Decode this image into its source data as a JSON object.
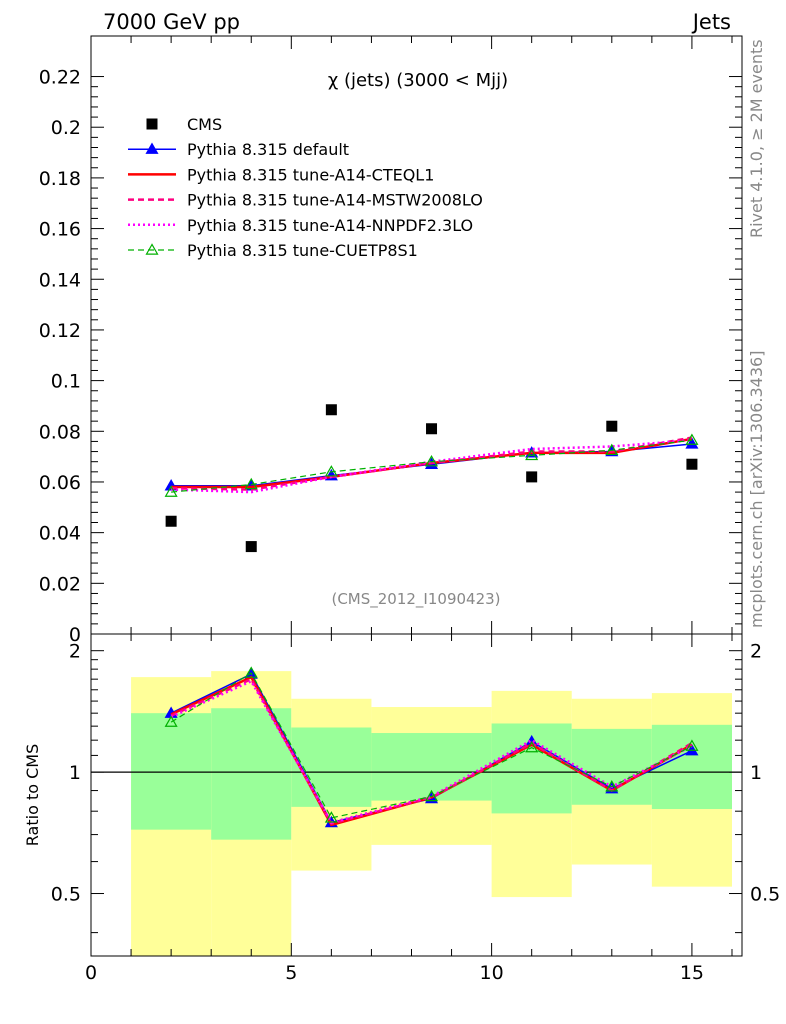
{
  "header": {
    "left_label": "7000 GeV pp",
    "right_label": "Jets"
  },
  "side_labels": {
    "rivet": "Rivet 4.1.0, ≥ 2M events",
    "source": "mcplots.cern.ch [arXiv:1306.3436]"
  },
  "colors": {
    "data": "#000000",
    "default": "#0000ff",
    "cteql1": "#ff0000",
    "mstw": "#ff0080",
    "nnpdf": "#ff00ff",
    "cuetp": "#00b000",
    "band_inner": "#99ff99",
    "band_outer": "#ffff99"
  },
  "chart_data": [
    {
      "type": "scatter",
      "panel": "main",
      "title": "χ (jets) (3000 < Mjj)",
      "analysis": "(CMS_2012_I1090423)",
      "xlabel": "",
      "ylabel": "",
      "xlim": [
        0,
        16.25
      ],
      "ylim": [
        0,
        0.236
      ],
      "yticks": [
        0,
        0.02,
        0.04,
        0.06,
        0.08,
        0.1,
        0.12,
        0.14,
        0.16,
        0.18,
        0.2,
        0.22
      ],
      "ytick_labels": [
        "0",
        "0.02",
        "0.04",
        "0.06",
        "0.08",
        "0.1",
        "0.12",
        "0.14",
        "0.16",
        "0.18",
        "0.2",
        "0.22"
      ],
      "legend": "top-left",
      "x": [
        2,
        4,
        6,
        8.5,
        11,
        13,
        15
      ],
      "series": [
        {
          "name": "CMS",
          "key": "data",
          "values": [
            0.0445,
            0.0345,
            0.0885,
            0.081,
            0.062,
            0.082,
            0.067
          ]
        },
        {
          "name": "Pythia 8.315 default",
          "key": "default",
          "values": [
            0.0585,
            0.0585,
            0.0625,
            0.067,
            0.0715,
            0.072,
            0.075
          ]
        },
        {
          "name": "Pythia 8.315 tune-A14-CTEQL1",
          "key": "cteql1",
          "values": [
            0.058,
            0.058,
            0.062,
            0.0675,
            0.0715,
            0.0715,
            0.077
          ]
        },
        {
          "name": "Pythia 8.315 tune-A14-MSTW2008LO",
          "key": "mstw",
          "values": [
            0.0575,
            0.057,
            0.062,
            0.0675,
            0.072,
            0.072,
            0.0775
          ]
        },
        {
          "name": "Pythia 8.315 tune-A14-NNPDF2.3LO",
          "key": "nnpdf",
          "values": [
            0.057,
            0.056,
            0.062,
            0.068,
            0.073,
            0.074,
            0.0765
          ]
        },
        {
          "name": "Pythia 8.315 tune-CUETP8S1",
          "key": "cuetp",
          "values": [
            0.056,
            0.059,
            0.064,
            0.068,
            0.0705,
            0.0725,
            0.0765
          ]
        }
      ]
    },
    {
      "type": "line",
      "panel": "ratio",
      "xlabel": "",
      "ylabel": "Ratio to CMS",
      "xlim": [
        0,
        16.25
      ],
      "ylim": [
        0.35,
        2.2
      ],
      "xticks": [
        0,
        5,
        10,
        15
      ],
      "xtick_labels": [
        "0",
        "5",
        "10",
        "15"
      ],
      "yticks": [
        0.5,
        1,
        2
      ],
      "ytick_labels": [
        "0.5",
        "1",
        "2"
      ],
      "bins": [
        [
          1,
          3
        ],
        [
          3,
          5
        ],
        [
          5,
          7
        ],
        [
          7,
          10
        ],
        [
          10,
          12
        ],
        [
          12,
          14
        ],
        [
          14,
          16
        ]
      ],
      "band_inner": [
        [
          0.72,
          1.4
        ],
        [
          0.68,
          1.44
        ],
        [
          0.82,
          1.29
        ],
        [
          0.85,
          1.25
        ],
        [
          0.79,
          1.32
        ],
        [
          0.83,
          1.28
        ],
        [
          0.81,
          1.31
        ]
      ],
      "band_outer": [
        [
          0.35,
          1.72
        ],
        [
          0.35,
          1.78
        ],
        [
          0.57,
          1.52
        ],
        [
          0.66,
          1.45
        ],
        [
          0.49,
          1.59
        ],
        [
          0.59,
          1.52
        ],
        [
          0.52,
          1.57
        ]
      ],
      "x": [
        2,
        4,
        6,
        8.5,
        11,
        13,
        15
      ],
      "series": [
        {
          "name": "Pythia 8.315 default",
          "key": "default",
          "values": [
            1.4,
            1.75,
            0.75,
            0.86,
            1.19,
            0.91,
            1.13
          ]
        },
        {
          "name": "Pythia 8.315 tune-A14-CTEQL1",
          "key": "cteql1",
          "values": [
            1.39,
            1.72,
            0.74,
            0.865,
            1.17,
            0.9,
            1.17
          ]
        },
        {
          "name": "Pythia 8.315 tune-A14-MSTW2008LO",
          "key": "mstw",
          "values": [
            1.38,
            1.7,
            0.745,
            0.865,
            1.18,
            0.9,
            1.18
          ]
        },
        {
          "name": "Pythia 8.315 tune-A14-NNPDF2.3LO",
          "key": "nnpdf",
          "values": [
            1.37,
            1.68,
            0.75,
            0.87,
            1.2,
            0.92,
            1.16
          ]
        },
        {
          "name": "Pythia 8.315 tune-CUETP8S1",
          "key": "cuetp",
          "values": [
            1.33,
            1.76,
            0.77,
            0.87,
            1.15,
            0.92,
            1.16
          ]
        }
      ]
    }
  ]
}
